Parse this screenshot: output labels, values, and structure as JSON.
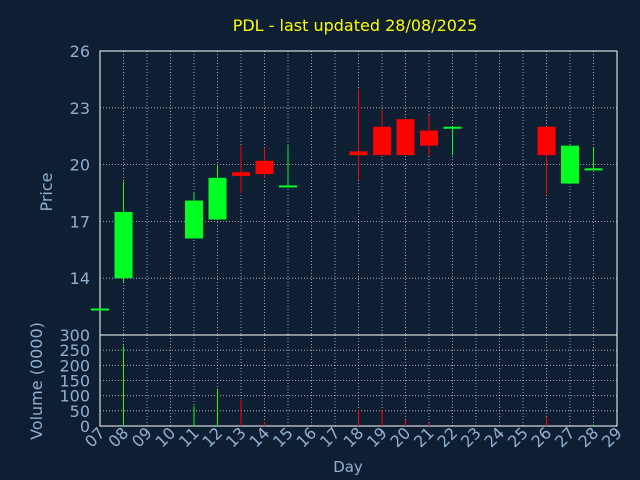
{
  "title": "PDL - last updated 28/08/2025",
  "colors": {
    "background": "#0f1f33",
    "text": "#8fb0d0",
    "title": "#ffff00",
    "up": "#00ff22",
    "down": "#ff0000",
    "grid": "#ffffff",
    "axis": "#ffffff"
  },
  "chart_data": [
    {
      "type": "candlestick",
      "ylabel": "Price",
      "ylim": [
        11,
        26
      ],
      "yticks": [
        14,
        17,
        20,
        23,
        26
      ],
      "grid": true,
      "x_tick_labels": [
        "07",
        "08",
        "09",
        "10",
        "11",
        "12",
        "13",
        "14",
        "15",
        "16",
        "17",
        "18",
        "19",
        "20",
        "21",
        "22",
        "23",
        "24",
        "25",
        "26",
        "27",
        "28",
        "29"
      ],
      "candles": [
        {
          "x": "07",
          "open": 12.4,
          "high": 12.4,
          "low": 12.4,
          "close": 12.4,
          "dir": "up"
        },
        {
          "x": "08",
          "open": 14.0,
          "high": 19.1,
          "low": 13.8,
          "close": 17.5,
          "dir": "up"
        },
        {
          "x": "11",
          "open": 16.1,
          "high": 18.5,
          "low": 16.1,
          "close": 18.1,
          "dir": "up"
        },
        {
          "x": "12",
          "open": 17.1,
          "high": 20.0,
          "low": 17.1,
          "close": 19.3,
          "dir": "up"
        },
        {
          "x": "13",
          "open": 19.6,
          "high": 21.0,
          "low": 18.5,
          "close": 19.4,
          "dir": "down"
        },
        {
          "x": "14",
          "open": 20.2,
          "high": 20.9,
          "low": 19.3,
          "close": 19.5,
          "dir": "down"
        },
        {
          "x": "15",
          "open": 18.9,
          "high": 21.0,
          "low": 18.9,
          "close": 18.9,
          "dir": "up"
        },
        {
          "x": "18",
          "open": 20.7,
          "high": 24.0,
          "low": 19.2,
          "close": 20.5,
          "dir": "down"
        },
        {
          "x": "19",
          "open": 22.0,
          "high": 22.9,
          "low": 20.5,
          "close": 20.5,
          "dir": "down"
        },
        {
          "x": "20",
          "open": 22.4,
          "high": 22.4,
          "low": 20.5,
          "close": 20.5,
          "dir": "down"
        },
        {
          "x": "21",
          "open": 21.8,
          "high": 22.6,
          "low": 20.5,
          "close": 21.0,
          "dir": "down"
        },
        {
          "x": "22",
          "open": 21.9,
          "high": 22.0,
          "low": 20.5,
          "close": 22.0,
          "dir": "up"
        },
        {
          "x": "26",
          "open": 22.0,
          "high": 22.0,
          "low": 18.4,
          "close": 20.5,
          "dir": "down"
        },
        {
          "x": "27",
          "open": 19.0,
          "high": 21.0,
          "low": 19.0,
          "close": 21.0,
          "dir": "up"
        },
        {
          "x": "28",
          "open": 19.7,
          "high": 20.9,
          "low": 19.7,
          "close": 19.8,
          "dir": "up"
        }
      ]
    },
    {
      "type": "bar",
      "ylabel": "Volume (0000)",
      "xlabel": "Day",
      "ylim": [
        0,
        300
      ],
      "yticks": [
        0,
        50,
        100,
        150,
        200,
        250,
        300
      ],
      "grid": true,
      "bars": [
        {
          "x": "08",
          "value": 265,
          "dir": "up"
        },
        {
          "x": "11",
          "value": 65,
          "dir": "up"
        },
        {
          "x": "12",
          "value": 120,
          "dir": "up"
        },
        {
          "x": "13",
          "value": 85,
          "dir": "down"
        },
        {
          "x": "14",
          "value": 15,
          "dir": "down"
        },
        {
          "x": "18",
          "value": 55,
          "dir": "down"
        },
        {
          "x": "19",
          "value": 55,
          "dir": "down"
        },
        {
          "x": "20",
          "value": 20,
          "dir": "down"
        },
        {
          "x": "21",
          "value": 10,
          "dir": "down"
        },
        {
          "x": "26",
          "value": 30,
          "dir": "down"
        },
        {
          "x": "28",
          "value": 5,
          "dir": "up"
        }
      ]
    }
  ]
}
